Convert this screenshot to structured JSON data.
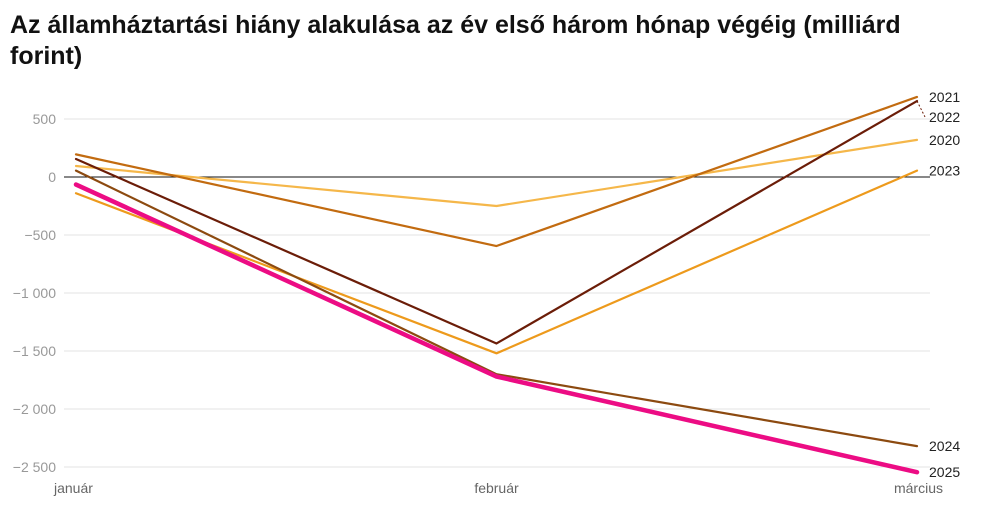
{
  "chart_data": {
    "type": "line",
    "title": "Az államháztartási hiány alakulása az év első három hónap végéig (milliárd forint)",
    "xlabel": "",
    "ylabel": "",
    "categories": [
      "január",
      "február",
      "március"
    ],
    "ylim": [
      -2600,
      700
    ],
    "yticks": [
      500,
      0,
      -500,
      -1000,
      -1500,
      -2000,
      -2500
    ],
    "ytick_labels": [
      "500",
      "0",
      "−500",
      "−1 000",
      "−1 500",
      "−2 000",
      "−2 500"
    ],
    "grid": true,
    "series": [
      {
        "name": "2020",
        "values": [
          95,
          -250,
          320
        ],
        "color": "#f5b74a",
        "width": 2.2
      },
      {
        "name": "2021",
        "values": [
          195,
          -595,
          690
        ],
        "color": "#c26b10",
        "width": 2.2
      },
      {
        "name": "2022",
        "values": [
          155,
          -1435,
          655
        ],
        "color": "#6b1d08",
        "width": 2.2
      },
      {
        "name": "2023",
        "values": [
          -140,
          -1520,
          55
        ],
        "color": "#ed9a1c",
        "width": 2.2
      },
      {
        "name": "2024",
        "values": [
          55,
          -1700,
          -2320
        ],
        "color": "#8c4a10",
        "width": 2.2
      },
      {
        "name": "2025",
        "values": [
          -65,
          -1720,
          -2545
        ],
        "color": "#ec0c84",
        "width": 4.5
      }
    ]
  }
}
